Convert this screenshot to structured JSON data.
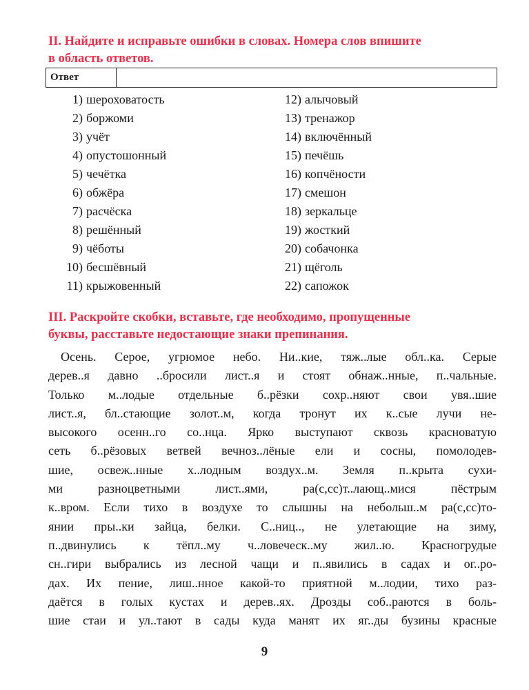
{
  "section2": {
    "title_lines": [
      "II. Найдите и исправьте ошибки в словах. Номера слов впишите",
      "в область ответов."
    ],
    "answer_label": "Ответ",
    "answer_value": "",
    "left_items": [
      {
        "num": "1)",
        "word": "шероховатость"
      },
      {
        "num": "2)",
        "word": "боржоми"
      },
      {
        "num": "3)",
        "word": "учёт"
      },
      {
        "num": "4)",
        "word": "опустошонный"
      },
      {
        "num": "5)",
        "word": "чечётка"
      },
      {
        "num": "6)",
        "word": "обжёра"
      },
      {
        "num": "7)",
        "word": "расчёска"
      },
      {
        "num": "8)",
        "word": "решённый"
      },
      {
        "num": "9)",
        "word": "чёботы"
      },
      {
        "num": "10)",
        "word": "бесшёвный"
      },
      {
        "num": "11)",
        "word": "крыжовенный"
      }
    ],
    "right_items": [
      {
        "num": "12)",
        "word": "алычовый"
      },
      {
        "num": "13)",
        "word": "тренажор"
      },
      {
        "num": "14)",
        "word": "включённый"
      },
      {
        "num": "15)",
        "word": "печёшь"
      },
      {
        "num": "16)",
        "word": "копчёности"
      },
      {
        "num": "17)",
        "word": "смешон"
      },
      {
        "num": "18)",
        "word": "зеркальце"
      },
      {
        "num": "19)",
        "word": "жосткий"
      },
      {
        "num": "20)",
        "word": "собачонка"
      },
      {
        "num": "21)",
        "word": "щёголь"
      },
      {
        "num": "22)",
        "word": "сапожок"
      }
    ]
  },
  "section3": {
    "title_lines": [
      "III. Раскройте скобки, вставьте, где необходимо, пропущенные",
      "буквы, расставьте недостающие знаки препинания."
    ],
    "lines": [
      "Осень. Серое, угрюмое небо. Ни..кие, тяж..лые обл..ка. Серые",
      "дерев..я давно ..бросили лист..я и стоят обнаж..нные, п..чальные.",
      "Только м..лодые отдельные б..рёзки сохр..няют свои увя..шие",
      "лист..я, бл..стающие золот..м, когда тронут их к..сые лучи не-",
      "высокого осенн..го со..нца. Ярко выступают сквозь красноватую",
      "сеть б..рёзовых ветвей вечноз..лёные ели и сосны, помолодев-",
      "шие, освеж..нные х..лодным воздух..м. Земля п..крыта сухи-",
      "ми разноцветными лист..ями, ра(с,сс)т..лающ..мися пёстрым",
      "к..вром. Если тихо в воздухе то слышны на небольш..м ра(с,сс)то-",
      "янии пры..ки зайца, белки. С..ниц.., не улетающие на зиму,",
      "п..двинулись к тёпл..му ч..ловеческ..му жил..ю. Красногрудые",
      "сн..гири выбрались из лесной чащи и п..явились в садах и ог..ро-",
      "дах. Их пение, лиш..нное какой-то приятной м..лодии, тихо раз-",
      "даётся в голых кустах и дерев..ях. Дрозды соб..раются в боль-",
      "шие стаи и ул..тают в сады куда манят их яг..ды бузины красные"
    ]
  },
  "page_number": "9",
  "colors": {
    "heading": "#e8304a",
    "text": "#1a1a1a"
  }
}
